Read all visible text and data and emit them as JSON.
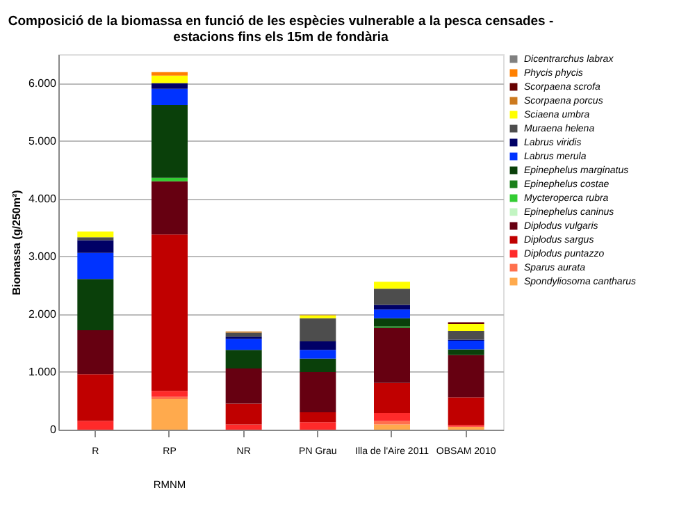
{
  "chart_data": {
    "type": "bar",
    "stacked": true,
    "title": "Composició de la biomassa en funció de les espècies vulnerable a la pesca censades - estacions fins els 15m de fondària",
    "ylabel": "Biomassa (g/250m²)",
    "categories": [
      "R",
      "RP",
      "NR",
      "PN Grau",
      "Illa de l'Aire 2011",
      "OBSAM 2010"
    ],
    "annotations": [
      "RMNM"
    ],
    "ylim": [
      0,
      6500
    ],
    "yticks": [
      0,
      {
        "value": 1000,
        "label": "1.000"
      },
      {
        "value": 2000,
        "label": "2.000"
      },
      {
        "value": 3000,
        "label": "3.000"
      },
      {
        "value": 4000,
        "label": "4.000"
      },
      {
        "value": 5000,
        "label": "5.000"
      },
      {
        "value": 6000,
        "label": "6.000"
      }
    ],
    "grid": "y",
    "legend": "right",
    "series": [
      {
        "name": "Spondyliosoma cantharus",
        "color": "#ffaa4d",
        "values": [
          0,
          530,
          0,
          0,
          90,
          50
        ]
      },
      {
        "name": "Sparus aurata",
        "color": "#ff704d",
        "values": [
          0,
          40,
          0,
          0,
          60,
          0
        ]
      },
      {
        "name": "Diplodus puntazzo",
        "color": "#ff2a2a",
        "values": [
          150,
          100,
          90,
          130,
          140,
          30
        ]
      },
      {
        "name": "Diplodus sargus",
        "color": "#c00000",
        "values": [
          810,
          2710,
          360,
          170,
          520,
          480
        ]
      },
      {
        "name": "Diplodus vulgaris",
        "color": "#660011",
        "values": [
          760,
          920,
          610,
          700,
          950,
          730
        ]
      },
      {
        "name": "Epinephelus caninus",
        "color": "#c2f5c2",
        "values": [
          0,
          0,
          0,
          0,
          0,
          0
        ]
      },
      {
        "name": "Mycteroperca  rubra",
        "color": "#33cc33",
        "values": [
          0,
          60,
          0,
          0,
          0,
          0
        ]
      },
      {
        "name": "Epinephelus costae",
        "color": "#1a801a",
        "values": [
          0,
          0,
          0,
          0,
          30,
          0
        ]
      },
      {
        "name": "Epinephelus marginatus",
        "color": "#0a400a",
        "values": [
          890,
          1260,
          320,
          230,
          140,
          100
        ]
      },
      {
        "name": "Labrus merula",
        "color": "#0033ff",
        "values": [
          450,
          280,
          190,
          150,
          150,
          150
        ]
      },
      {
        "name": "Labrus viridis",
        "color": "#000066",
        "values": [
          220,
          100,
          40,
          150,
          80,
          20
        ]
      },
      {
        "name": "Muraena helena",
        "color": "#4d4d4d",
        "values": [
          50,
          0,
          70,
          400,
          280,
          150
        ]
      },
      {
        "name": "Sciaena umbra",
        "color": "#ffff00",
        "values": [
          100,
          130,
          0,
          50,
          120,
          120
        ]
      },
      {
        "name": "Scorpaena porcus",
        "color": "#cc7a1f",
        "values": [
          0,
          0,
          20,
          10,
          0,
          0
        ]
      },
      {
        "name": "Scorpaena scrofa",
        "color": "#660000",
        "values": [
          0,
          0,
          0,
          0,
          0,
          30
        ]
      },
      {
        "name": "Phycis phycis",
        "color": "#ff8000",
        "values": [
          0,
          60,
          0,
          0,
          0,
          0
        ]
      },
      {
        "name": "Dicentrarchus  labrax",
        "color": "#808080",
        "values": [
          0,
          0,
          0,
          0,
          0,
          0
        ]
      }
    ]
  }
}
